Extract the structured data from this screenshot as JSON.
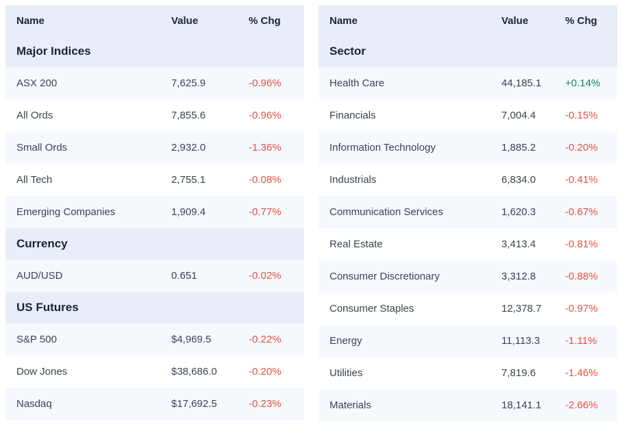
{
  "columns": {
    "name": "Name",
    "value": "Value",
    "pct": "% Chg"
  },
  "colors": {
    "header_bg": "#e8edf7",
    "row_alt_bg": "#f5f9fd",
    "row_bg": "#ffffff",
    "heading_text": "#1c2433",
    "body_text": "#3a434f",
    "negative": "#e74f3d",
    "positive": "#15835f"
  },
  "left": {
    "sections": [
      {
        "title": "Major Indices",
        "rows": [
          {
            "name": "ASX 200",
            "value": "7,625.9",
            "chg": "-0.96%",
            "dir": "neg"
          },
          {
            "name": "All Ords",
            "value": "7,855.6",
            "chg": "-0.96%",
            "dir": "neg"
          },
          {
            "name": "Small Ords",
            "value": "2,932.0",
            "chg": "-1.36%",
            "dir": "neg"
          },
          {
            "name": "All Tech",
            "value": "2,755.1",
            "chg": "-0.08%",
            "dir": "neg"
          },
          {
            "name": "Emerging Companies",
            "value": "1,909.4",
            "chg": "-0.77%",
            "dir": "neg"
          }
        ]
      },
      {
        "title": "Currency",
        "rows": [
          {
            "name": "AUD/USD",
            "value": "0.651",
            "chg": "-0.02%",
            "dir": "neg"
          }
        ]
      },
      {
        "title": "US Futures",
        "rows": [
          {
            "name": "S&P 500",
            "value": "$4,969.5",
            "chg": "-0.22%",
            "dir": "neg"
          },
          {
            "name": "Dow Jones",
            "value": "$38,686.0",
            "chg": "-0.20%",
            "dir": "neg"
          },
          {
            "name": "Nasdaq",
            "value": "$17,692.5",
            "chg": "-0.23%",
            "dir": "neg"
          }
        ]
      }
    ]
  },
  "right": {
    "sections": [
      {
        "title": "Sector",
        "rows": [
          {
            "name": "Health Care",
            "value": "44,185.1",
            "chg": "+0.14%",
            "dir": "pos"
          },
          {
            "name": "Financials",
            "value": "7,004.4",
            "chg": "-0.15%",
            "dir": "neg"
          },
          {
            "name": "Information Technology",
            "value": "1,885.2",
            "chg": "-0.20%",
            "dir": "neg"
          },
          {
            "name": "Industrials",
            "value": "6,834.0",
            "chg": "-0.41%",
            "dir": "neg"
          },
          {
            "name": "Communication Services",
            "value": "1,620.3",
            "chg": "-0.67%",
            "dir": "neg"
          },
          {
            "name": "Real Estate",
            "value": "3,413.4",
            "chg": "-0.81%",
            "dir": "neg"
          },
          {
            "name": "Consumer Discretionary",
            "value": "3,312.8",
            "chg": "-0.88%",
            "dir": "neg"
          },
          {
            "name": "Consumer Staples",
            "value": "12,378.7",
            "chg": "-0.97%",
            "dir": "neg"
          },
          {
            "name": "Energy",
            "value": "11,113.3",
            "chg": "-1.11%",
            "dir": "neg"
          },
          {
            "name": "Utilities",
            "value": "7,819.6",
            "chg": "-1.46%",
            "dir": "neg"
          },
          {
            "name": "Materials",
            "value": "18,141.1",
            "chg": "-2.66%",
            "dir": "neg"
          }
        ]
      }
    ]
  }
}
